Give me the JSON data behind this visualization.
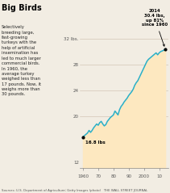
{
  "title": "Big Birds",
  "subtitle": "Selectively\nbreeding large,\nfast-growing\nturkeys with the\nhelp of artificial\ninsemination has\nled to much larger\ncommercial birds.\nIn 1960, the\naverage turkey\nweighed less than\n17 pounds. Now, it\nweighs more than\n30 pounds.",
  "source": "Sources: U.S. Department of Agriculture; Getty Images (photo)   THE WALL STREET JOURNAL",
  "line_color": "#2ab0c8",
  "fill_color": "#fde8c0",
  "bg_color": "#f2ede3",
  "ylim": [
    12,
    33.5
  ],
  "yticks": [
    20,
    24,
    28,
    32
  ],
  "ytick_labels": [
    "20",
    "24",
    "28",
    "32 lbs."
  ],
  "xticks": [
    1960,
    1970,
    1980,
    1990,
    2000,
    2010
  ],
  "xtick_labels": [
    "1960",
    "70",
    "80",
    "90",
    "2000",
    "10"
  ],
  "start_label": "16.8 lbs",
  "end_annotation": "2014\n30.4 lbs,\nup 81%\nsince 1960",
  "years": [
    1960,
    1961,
    1962,
    1963,
    1964,
    1965,
    1966,
    1967,
    1968,
    1969,
    1970,
    1971,
    1972,
    1973,
    1974,
    1975,
    1976,
    1977,
    1978,
    1979,
    1980,
    1981,
    1982,
    1983,
    1984,
    1985,
    1986,
    1987,
    1988,
    1989,
    1990,
    1991,
    1992,
    1993,
    1994,
    1995,
    1996,
    1997,
    1998,
    1999,
    2000,
    2001,
    2002,
    2003,
    2004,
    2005,
    2006,
    2007,
    2008,
    2009,
    2010,
    2011,
    2012,
    2013,
    2014
  ],
  "weights": [
    16.8,
    17.0,
    17.2,
    17.4,
    17.8,
    17.5,
    17.8,
    18.2,
    18.5,
    18.8,
    18.6,
    19.0,
    19.2,
    18.8,
    18.5,
    18.7,
    19.2,
    19.5,
    19.8,
    20.0,
    20.2,
    20.8,
    20.5,
    20.2,
    21.0,
    21.5,
    21.8,
    22.2,
    22.5,
    22.8,
    23.2,
    23.5,
    23.8,
    24.2,
    24.8,
    25.2,
    25.5,
    26.0,
    26.5,
    27.0,
    27.5,
    28.0,
    28.5,
    28.8,
    29.0,
    29.2,
    29.4,
    29.6,
    29.8,
    29.5,
    29.8,
    30.0,
    30.1,
    30.2,
    30.4
  ]
}
